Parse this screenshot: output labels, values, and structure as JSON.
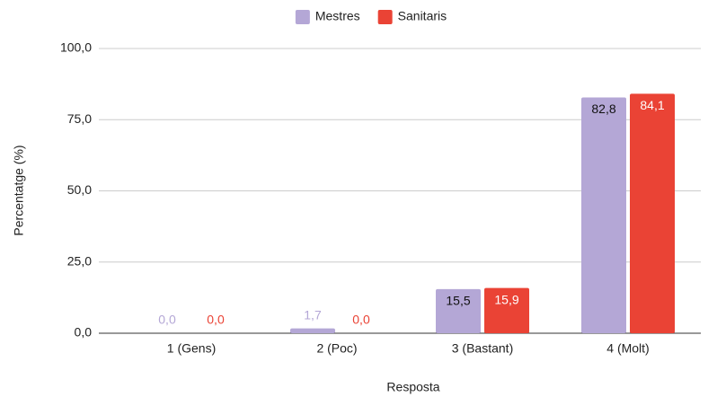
{
  "chart_data": {
    "type": "bar",
    "categories": [
      "1 (Gens)",
      "2 (Poc)",
      "3 (Bastant)",
      "4 (Molt)"
    ],
    "series": [
      {
        "name": "Mestres",
        "color": "#b4a7d6",
        "values": [
          0.0,
          1.7,
          15.5,
          82.8
        ],
        "value_labels": [
          "0,0",
          "1,7",
          "15,5",
          "82,8"
        ]
      },
      {
        "name": "Sanitaris",
        "color": "#ea4335",
        "values": [
          0.0,
          0.0,
          15.9,
          84.1
        ],
        "value_labels": [
          "0,0",
          "0,0",
          "15,9",
          "84,1"
        ]
      }
    ],
    "xlabel": "Resposta",
    "ylabel": "Percentatge (%)",
    "ylim": [
      0,
      100
    ],
    "yticks": [
      {
        "value": 0,
        "label": "0,0"
      },
      {
        "value": 25,
        "label": "25,0"
      },
      {
        "value": 50,
        "label": "50,0"
      },
      {
        "value": 75,
        "label": "75,0"
      },
      {
        "value": 100,
        "label": "100,0"
      }
    ],
    "grid": true,
    "legend": "top"
  }
}
